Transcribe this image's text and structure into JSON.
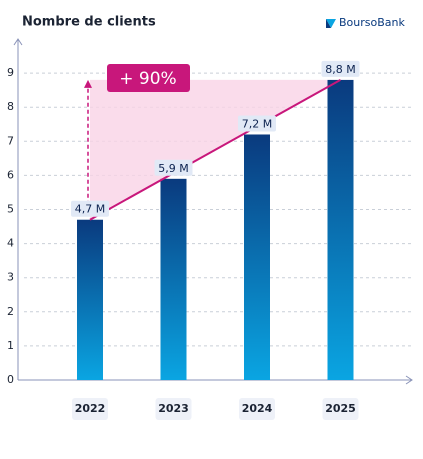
{
  "chart_data": {
    "type": "bar",
    "title": "Nombre de clients",
    "brand": "BoursoBank",
    "categories": [
      "2022",
      "2023",
      "2024",
      "2025"
    ],
    "values": [
      4.7,
      5.9,
      7.2,
      8.8
    ],
    "value_labels": [
      "4,7 M",
      "5,9 M",
      "7,2 M",
      "8,8 M"
    ],
    "ylim": [
      0,
      10
    ],
    "yticks": [
      0,
      1,
      2,
      3,
      4,
      5,
      6,
      7,
      8,
      9
    ],
    "grid": true,
    "colors": [
      "#0a3a7e",
      "#0aa5e2"
    ],
    "annotation_color": "#c8177b",
    "annotation": "+ 90%"
  }
}
